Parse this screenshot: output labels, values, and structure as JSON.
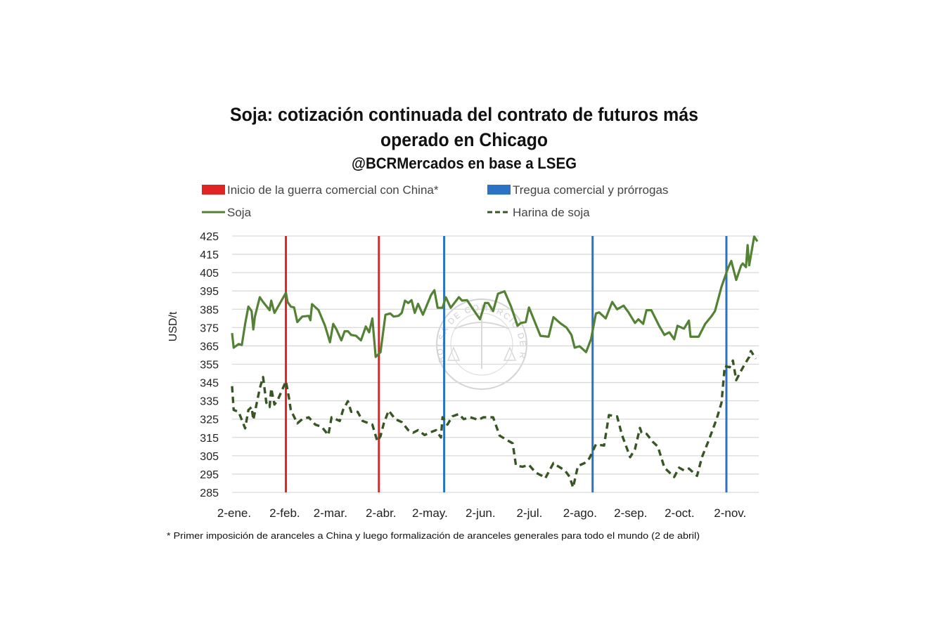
{
  "chart_data": {
    "type": "line",
    "title": [
      "Soja: cotización continuada del contrato de futuros más",
      "operado en Chicago"
    ],
    "subtitle": "@BCRMercados en base a LSEG",
    "ylabel": "USD/t",
    "xlabel": "",
    "ylim": [
      285,
      425
    ],
    "yticks": [
      425,
      415,
      405,
      395,
      385,
      375,
      365,
      355,
      345,
      335,
      325,
      315,
      305,
      295,
      285
    ],
    "xticks": [
      {
        "date": "01-02",
        "label": "2-ene."
      },
      {
        "date": "02-02",
        "label": "2-feb."
      },
      {
        "date": "03-02",
        "label": "2-mar."
      },
      {
        "date": "04-02",
        "label": "2-abr."
      },
      {
        "date": "05-02",
        "label": "2-may."
      },
      {
        "date": "06-02",
        "label": "2-jun."
      },
      {
        "date": "07-02",
        "label": "2-jul."
      },
      {
        "date": "08-02",
        "label": "2-ago."
      },
      {
        "date": "09-02",
        "label": "2-sep."
      },
      {
        "date": "10-02",
        "label": "2-oct."
      },
      {
        "date": "11-02",
        "label": "2-nov."
      }
    ],
    "xlim": [
      "01-02",
      "11-20"
    ],
    "grid": true,
    "legend_position": "top",
    "legend": [
      {
        "label": "Inicio de la guerra comercial con China*",
        "color": "#e02424",
        "kind": "swatch"
      },
      {
        "label": "Tregua comercial y prórrogas",
        "color": "#2a72c4",
        "kind": "swatch"
      },
      {
        "label": "Soja",
        "color": "#548235",
        "kind": "line"
      },
      {
        "label": "Harina de soja",
        "color": "#375623",
        "kind": "dashed"
      }
    ],
    "events": [
      {
        "date": "02-04",
        "type": "Inicio de la guerra comercial con China*",
        "color": "#e02424"
      },
      {
        "date": "04-02",
        "type": "Inicio de la guerra comercial con China*",
        "color": "#e02424"
      },
      {
        "date": "05-12",
        "type": "Tregua comercial y prórrogas",
        "color": "#2a72c4"
      },
      {
        "date": "08-11",
        "type": "Tregua comercial y prórrogas",
        "color": "#2a72c4"
      },
      {
        "date": "11-01",
        "type": "Tregua comercial y prórrogas",
        "color": "#2a72c4"
      }
    ],
    "series": [
      {
        "name": "Soja",
        "color": "#548235",
        "dashed": false,
        "points": [
          [
            "01-02",
            372
          ],
          [
            "01-03",
            364
          ],
          [
            "01-06",
            366
          ],
          [
            "01-08",
            365.5
          ],
          [
            "01-10",
            377
          ],
          [
            "01-12",
            386.5
          ],
          [
            "01-14",
            384
          ],
          [
            "01-15",
            374
          ],
          [
            "01-16",
            381
          ],
          [
            "01-19",
            391.6
          ],
          [
            "01-21",
            389
          ],
          [
            "01-25",
            384.5
          ],
          [
            "01-26",
            389.7
          ],
          [
            "01-28",
            383
          ],
          [
            "02-04",
            394
          ],
          [
            "02-05",
            389
          ],
          [
            "02-07",
            386.5
          ],
          [
            "02-09",
            386
          ],
          [
            "02-11",
            378
          ],
          [
            "02-14",
            381
          ],
          [
            "02-18",
            381.4
          ],
          [
            "02-19",
            379
          ],
          [
            "02-20",
            387.8
          ],
          [
            "02-24",
            384.5
          ],
          [
            "02-28",
            376
          ],
          [
            "03-03",
            367
          ],
          [
            "03-05",
            377
          ],
          [
            "03-07",
            374
          ],
          [
            "03-10",
            368
          ],
          [
            "03-12",
            373
          ],
          [
            "03-14",
            373
          ],
          [
            "03-16",
            371
          ],
          [
            "03-19",
            370.5
          ],
          [
            "03-22",
            368
          ],
          [
            "03-25",
            375.6
          ],
          [
            "03-27",
            372.4
          ],
          [
            "03-29",
            380
          ],
          [
            "03-31",
            359
          ],
          [
            "04-03",
            361.6
          ],
          [
            "04-06",
            382
          ],
          [
            "04-09",
            382.7
          ],
          [
            "04-11",
            381
          ],
          [
            "04-14",
            381.4
          ],
          [
            "04-16",
            383
          ],
          [
            "04-18",
            389.7
          ],
          [
            "04-20",
            388.4
          ],
          [
            "04-22",
            390
          ],
          [
            "04-24",
            383
          ],
          [
            "04-26",
            388
          ],
          [
            "04-29",
            382
          ],
          [
            "05-04",
            392.8
          ],
          [
            "05-06",
            395.4
          ],
          [
            "05-08",
            385.8
          ],
          [
            "05-11",
            385.8
          ],
          [
            "05-13",
            391.6
          ],
          [
            "05-16",
            385.8
          ],
          [
            "05-21",
            391.6
          ],
          [
            "05-23",
            389.7
          ],
          [
            "05-26",
            390
          ],
          [
            "05-29",
            386
          ],
          [
            "06-03",
            379.5
          ],
          [
            "06-06",
            388.4
          ],
          [
            "06-08",
            388.4
          ],
          [
            "06-11",
            384
          ],
          [
            "06-14",
            393.5
          ],
          [
            "06-18",
            394.8
          ],
          [
            "06-22",
            386.5
          ],
          [
            "06-26",
            376
          ],
          [
            "06-28",
            377.5
          ],
          [
            "07-01",
            378
          ],
          [
            "07-03",
            386
          ],
          [
            "07-10",
            370.5
          ],
          [
            "07-15",
            370
          ],
          [
            "07-18",
            380.7
          ],
          [
            "07-22",
            377.5
          ],
          [
            "07-26",
            375
          ],
          [
            "07-29",
            371
          ],
          [
            "07-31",
            364
          ],
          [
            "08-03",
            364.8
          ],
          [
            "08-07",
            361.6
          ],
          [
            "08-10",
            368.6
          ],
          [
            "08-13",
            382.7
          ],
          [
            "08-15",
            383.3
          ],
          [
            "08-19",
            380
          ],
          [
            "08-23",
            389
          ],
          [
            "08-26",
            385
          ],
          [
            "08-30",
            387
          ],
          [
            "09-02",
            383.3
          ],
          [
            "09-06",
            377.5
          ],
          [
            "09-08",
            379.5
          ],
          [
            "09-11",
            377
          ],
          [
            "09-13",
            384.5
          ],
          [
            "09-16",
            384.5
          ],
          [
            "09-21",
            375.6
          ],
          [
            "09-24",
            371
          ],
          [
            "09-27",
            372.4
          ],
          [
            "09-30",
            368.6
          ],
          [
            "10-02",
            376
          ],
          [
            "10-06",
            374.4
          ],
          [
            "10-09",
            378.8
          ],
          [
            "10-10",
            370
          ],
          [
            "10-15",
            370
          ],
          [
            "10-19",
            377
          ],
          [
            "10-23",
            381.4
          ],
          [
            "10-25",
            384
          ],
          [
            "10-29",
            397.3
          ],
          [
            "11-02",
            407.5
          ],
          [
            "11-04",
            411.4
          ],
          [
            "11-07",
            401
          ],
          [
            "11-10",
            408.8
          ],
          [
            "11-11",
            410
          ],
          [
            "11-13",
            408
          ],
          [
            "11-14",
            420
          ],
          [
            "11-15",
            409
          ],
          [
            "11-18",
            424.7
          ],
          [
            "11-20",
            422
          ]
        ]
      },
      {
        "name": "Harina de soja",
        "color": "#375623",
        "dashed": true,
        "points": [
          [
            "01-02",
            343
          ],
          [
            "01-03",
            330
          ],
          [
            "01-06",
            329
          ],
          [
            "01-10",
            320
          ],
          [
            "01-12",
            330
          ],
          [
            "01-14",
            331.6
          ],
          [
            "01-15",
            324.6
          ],
          [
            "01-19",
            341.8
          ],
          [
            "01-21",
            348
          ],
          [
            "01-23",
            334
          ],
          [
            "01-25",
            331.6
          ],
          [
            "01-26",
            341.8
          ],
          [
            "01-28",
            333
          ],
          [
            "01-30",
            335.5
          ],
          [
            "02-04",
            345.7
          ],
          [
            "02-06",
            336
          ],
          [
            "02-07",
            330
          ],
          [
            "02-11",
            322.7
          ],
          [
            "02-14",
            325
          ],
          [
            "02-18",
            326
          ],
          [
            "02-22",
            322
          ],
          [
            "02-26",
            320.8
          ],
          [
            "03-02",
            316.3
          ],
          [
            "03-04",
            326
          ],
          [
            "03-09",
            324
          ],
          [
            "03-11",
            330
          ],
          [
            "03-14",
            334.8
          ],
          [
            "03-16",
            329
          ],
          [
            "03-20",
            329
          ],
          [
            "03-23",
            324
          ],
          [
            "03-29",
            322
          ],
          [
            "04-01",
            313
          ],
          [
            "04-03",
            315.7
          ],
          [
            "04-05",
            322.7
          ],
          [
            "04-08",
            329.7
          ],
          [
            "04-12",
            325
          ],
          [
            "04-16",
            323.4
          ],
          [
            "04-20",
            319
          ],
          [
            "04-23",
            317.6
          ],
          [
            "04-26",
            319
          ],
          [
            "04-30",
            316.3
          ],
          [
            "05-03",
            317.6
          ],
          [
            "05-07",
            319
          ],
          [
            "05-10",
            315
          ],
          [
            "05-11",
            326
          ],
          [
            "05-14",
            322
          ],
          [
            "05-17",
            326.5
          ],
          [
            "05-21",
            327.8
          ],
          [
            "05-24",
            325
          ],
          [
            "05-28",
            326
          ],
          [
            "06-02",
            324.6
          ],
          [
            "06-05",
            326
          ],
          [
            "06-11",
            326
          ],
          [
            "06-15",
            316
          ],
          [
            "06-19",
            313.8
          ],
          [
            "06-23",
            311.8
          ],
          [
            "06-25",
            299.7
          ],
          [
            "06-29",
            299
          ],
          [
            "07-03",
            300
          ],
          [
            "07-07",
            295.9
          ],
          [
            "07-11",
            294
          ],
          [
            "07-13",
            292.7
          ],
          [
            "07-18",
            301
          ],
          [
            "07-20",
            299.7
          ],
          [
            "07-25",
            297
          ],
          [
            "07-28",
            293.4
          ],
          [
            "07-30",
            287.6
          ],
          [
            "08-02",
            299.4
          ],
          [
            "08-06",
            301
          ],
          [
            "08-09",
            303.6
          ],
          [
            "08-13",
            311.2
          ],
          [
            "08-18",
            310.6
          ],
          [
            "08-21",
            327.2
          ],
          [
            "08-26",
            326.5
          ],
          [
            "08-29",
            316.3
          ],
          [
            "09-03",
            304.2
          ],
          [
            "09-06",
            308.7
          ],
          [
            "09-09",
            320.2
          ],
          [
            "09-10",
            317.6
          ],
          [
            "09-13",
            317
          ],
          [
            "09-17",
            312.5
          ],
          [
            "09-20",
            310
          ],
          [
            "09-24",
            298.5
          ],
          [
            "09-30",
            293.4
          ],
          [
            "10-03",
            298.5
          ],
          [
            "10-06",
            297
          ],
          [
            "10-09",
            298
          ],
          [
            "10-14",
            294
          ],
          [
            "10-17",
            304.2
          ],
          [
            "10-21",
            313
          ],
          [
            "10-26",
            325
          ],
          [
            "10-29",
            334
          ],
          [
            "10-31",
            354
          ],
          [
            "11-03",
            353.3
          ],
          [
            "11-05",
            357
          ],
          [
            "11-07",
            346.3
          ],
          [
            "11-10",
            351.4
          ],
          [
            "11-12",
            354.6
          ],
          [
            "11-15",
            359
          ],
          [
            "11-16",
            362.2
          ],
          [
            "11-19",
            358
          ]
        ]
      }
    ],
    "footnote": "* Primer imposición de aranceles a China y luego formalización de aranceles generales para todo el mundo  (2 de abril)",
    "watermark": "BOLSA DE COMERCIO DE ROSARIO"
  }
}
